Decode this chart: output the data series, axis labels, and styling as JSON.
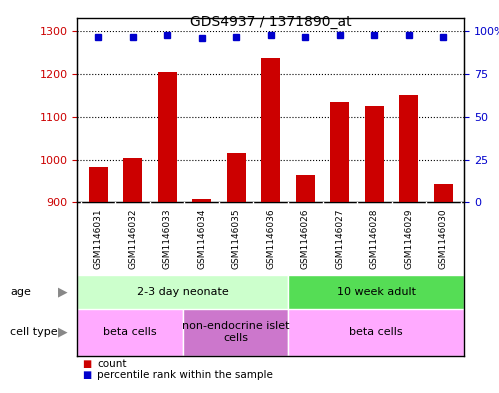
{
  "title": "GDS4937 / 1371890_at",
  "samples": [
    "GSM1146031",
    "GSM1146032",
    "GSM1146033",
    "GSM1146034",
    "GSM1146035",
    "GSM1146036",
    "GSM1146026",
    "GSM1146027",
    "GSM1146028",
    "GSM1146029",
    "GSM1146030"
  ],
  "counts": [
    982,
    1003,
    1204,
    907,
    1015,
    1238,
    963,
    1135,
    1125,
    1152,
    943
  ],
  "percentile_ranks": [
    97,
    97,
    98,
    96,
    97,
    98,
    97,
    98,
    98,
    98,
    97
  ],
  "ylim_left": [
    900,
    1300
  ],
  "ylim_right": [
    0,
    100
  ],
  "yticks_left": [
    900,
    1000,
    1100,
    1200,
    1300
  ],
  "yticks_right": [
    0,
    25,
    50,
    75,
    100
  ],
  "bar_color": "#cc0000",
  "dot_color": "#0000cc",
  "bar_width": 0.55,
  "age_groups": [
    {
      "label": "2-3 day neonate",
      "start": 0,
      "end": 6,
      "color": "#ccffcc"
    },
    {
      "label": "10 week adult",
      "start": 6,
      "end": 11,
      "color": "#55dd55"
    }
  ],
  "cell_type_groups": [
    {
      "label": "beta cells",
      "start": 0,
      "end": 3,
      "color": "#ffaaff"
    },
    {
      "label": "non-endocrine islet\ncells",
      "start": 3,
      "end": 6,
      "color": "#cc77cc"
    },
    {
      "label": "beta cells",
      "start": 6,
      "end": 11,
      "color": "#ffaaff"
    }
  ],
  "legend_items": [
    {
      "color": "#cc0000",
      "label": "count"
    },
    {
      "color": "#0000cc",
      "label": "percentile rank within the sample"
    }
  ],
  "background_color": "#ffffff",
  "tick_label_color_left": "#cc0000",
  "tick_label_color_right": "#0000cc",
  "sample_bg_color": "#cccccc",
  "border_color": "#000000"
}
